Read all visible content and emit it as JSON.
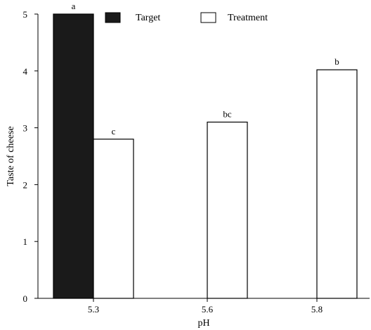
{
  "chart_data": {
    "type": "bar",
    "xlabel": "pH",
    "ylabel": "Taste of cheese",
    "categories": [
      "5.3",
      "5.6",
      "5.8"
    ],
    "ylim": [
      0,
      5
    ],
    "yticks": [
      "0",
      "1",
      "2",
      "3",
      "4",
      "5"
    ],
    "grid": false,
    "legend_position": "top",
    "series": [
      {
        "name": "Target",
        "color": "#1a1a1a",
        "values": [
          5.0,
          0,
          0
        ],
        "labels": [
          "a",
          "",
          ""
        ]
      },
      {
        "name": "Treatment",
        "color": "#ffffff",
        "values": [
          2.8,
          3.1,
          4.02
        ],
        "labels": [
          "c",
          "bc",
          "b"
        ]
      }
    ]
  }
}
